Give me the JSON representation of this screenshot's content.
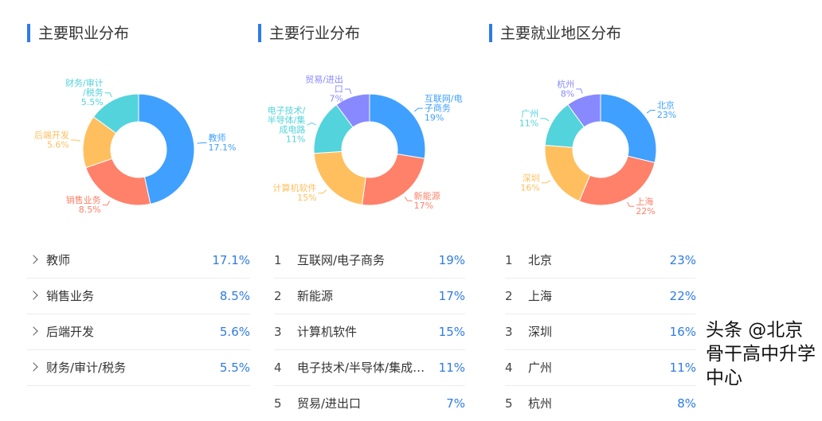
{
  "colors": [
    "#3fa0ff",
    "#ff8169",
    "#ffbf5f",
    "#53d3dc",
    "#8889ff"
  ],
  "panels": [
    {
      "title": "主要职业分布",
      "list_style": "chevron",
      "items": [
        {
          "label": "教师",
          "chart_label": "教师",
          "value": 17.1,
          "display": "17.1%"
        },
        {
          "label": "销售业务",
          "chart_label": "销售业务",
          "value": 8.5,
          "display": "8.5%"
        },
        {
          "label": "后端开发",
          "chart_label": "后端开发",
          "value": 5.6,
          "display": "5.6%"
        },
        {
          "label": "财务/审计/税务",
          "chart_label": "财务/审计\n/税务",
          "value": 5.5,
          "display": "5.5%"
        }
      ]
    },
    {
      "title": "主要行业分布",
      "list_style": "index",
      "items": [
        {
          "index": "1",
          "label": "互联网/电子商务",
          "chart_label": "互联网/电\n子商务",
          "value": 19,
          "display": "19%"
        },
        {
          "index": "2",
          "label": "新能源",
          "chart_label": "新能源",
          "value": 17,
          "display": "17%"
        },
        {
          "index": "3",
          "label": "计算机软件",
          "chart_label": "计算机软件",
          "value": 15,
          "display": "15%"
        },
        {
          "index": "4",
          "label": "电子技术/半导体/集成电路",
          "chart_label": "电子技术/\n半导体/集\n成电路",
          "value": 11,
          "display": "11%"
        },
        {
          "index": "5",
          "label": "贸易/进出口",
          "chart_label": "贸易/进出\n口",
          "value": 7,
          "display": "7%"
        }
      ]
    },
    {
      "title": "主要就业地区分布",
      "list_style": "index",
      "items": [
        {
          "index": "1",
          "label": "北京",
          "chart_label": "北京",
          "value": 23,
          "display": "23%"
        },
        {
          "index": "2",
          "label": "上海",
          "chart_label": "上海",
          "value": 22,
          "display": "22%"
        },
        {
          "index": "3",
          "label": "深圳",
          "chart_label": "深圳",
          "value": 16,
          "display": "16%"
        },
        {
          "index": "4",
          "label": "广州",
          "chart_label": "广州",
          "value": 11,
          "display": "11%"
        },
        {
          "index": "5",
          "label": "杭州",
          "chart_label": "杭州",
          "value": 8,
          "display": "8%"
        }
      ]
    }
  ],
  "watermark": "头条 @北京骨干高中升学中心"
}
